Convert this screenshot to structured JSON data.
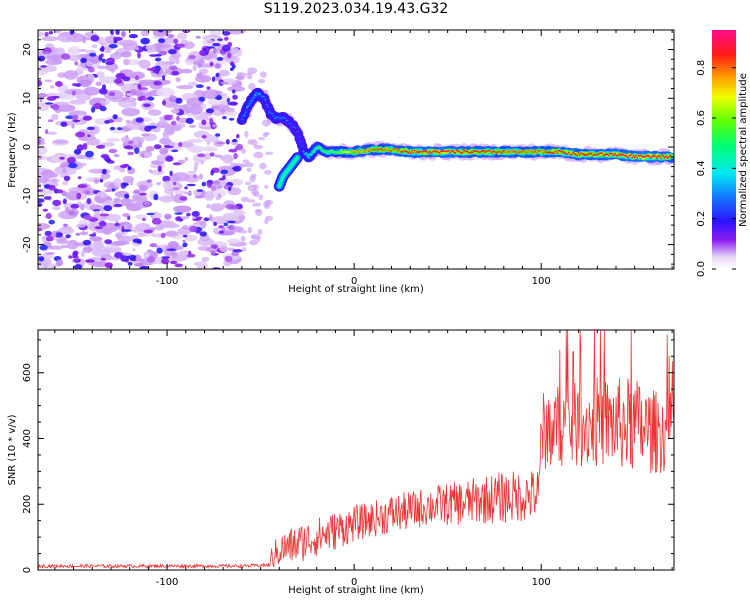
{
  "title": "S119.2023.034.19.43.G32",
  "chart_data": [
    {
      "type": "heatmap",
      "xlabel": "Height of straight line (km)",
      "ylabel": "Frequency (Hz)",
      "xlim": [
        -169,
        171
      ],
      "ylim": [
        -25,
        24
      ],
      "xticks": [
        -100,
        0,
        100
      ],
      "xtick_labels": [
        "-100",
        "0",
        "100"
      ],
      "yticks": [
        -20,
        -10,
        0,
        10,
        20
      ],
      "ytick_labels": [
        "-20",
        "-10",
        "0",
        "10",
        "20"
      ],
      "noise_region_x": [
        -169,
        -61
      ],
      "noise_amplitude_range": [
        0.0,
        0.3
      ],
      "signal_ridge": {
        "x": [
          -60,
          -56,
          -52,
          -48,
          -45,
          -42,
          -38,
          -34,
          -30,
          -27,
          -24,
          -20,
          -15,
          -10,
          -5,
          0,
          10,
          20,
          30,
          40,
          50,
          60,
          70,
          80,
          90,
          100,
          110,
          120,
          130,
          140,
          150,
          160,
          170
        ],
        "frequency": [
          5.5,
          9,
          11,
          10,
          7,
          6,
          6,
          5,
          3,
          -1,
          -2,
          0,
          -1,
          -1,
          -1,
          -1,
          -0.5,
          -0.5,
          -1,
          -1,
          -1,
          -1,
          -1,
          -1,
          -1,
          -1,
          -1,
          -1.5,
          -1.5,
          -1.5,
          -2,
          -2,
          -2
        ],
        "amplitude": [
          0.3,
          0.35,
          0.35,
          0.3,
          0.3,
          0.3,
          0.3,
          0.25,
          0.25,
          0.3,
          0.45,
          0.55,
          0.55,
          0.6,
          0.7,
          0.8,
          0.85,
          0.85,
          0.9,
          0.9,
          0.95,
          0.9,
          0.9,
          0.85,
          0.85,
          0.85,
          0.9,
          0.9,
          0.9,
          0.95,
          0.95,
          0.95,
          0.9
        ]
      },
      "side_branch": {
        "x": [
          -40,
          -38,
          -36,
          -34,
          -32,
          -30
        ],
        "frequency": [
          -8,
          -6,
          -5,
          -4,
          -3,
          -2
        ]
      },
      "colorbar": {
        "label": "Normalized spectral amplitude",
        "range": [
          0.0,
          0.95
        ],
        "ticks": [
          0.0,
          0.2,
          0.4,
          0.6,
          0.8
        ],
        "tick_labels": [
          "0.0",
          "0.2",
          "0.4",
          "0.6",
          "0.8"
        ],
        "colormap": "rainbow (white → violet → blue → cyan → green → yellow → orange → red → magenta)"
      }
    },
    {
      "type": "line",
      "xlabel": "Height of straight line (km)",
      "ylabel": "SNR (10 * v/v)",
      "xlim": [
        -169,
        171
      ],
      "ylim": [
        0,
        730
      ],
      "xticks": [
        -100,
        0,
        100
      ],
      "xtick_labels": [
        "-100",
        "0",
        "100"
      ],
      "yticks": [
        0,
        200,
        400,
        600
      ],
      "ytick_labels": [
        "0",
        "200",
        "400",
        "600"
      ],
      "color": "#ee3333",
      "envelope": {
        "x": [
          -169,
          -60,
          -45,
          -44,
          -40,
          -30,
          -20,
          -10,
          0,
          10,
          20,
          30,
          40,
          50,
          60,
          70,
          80,
          90,
          99,
          100,
          110,
          120,
          130,
          140,
          150,
          160,
          171
        ],
        "mean": [
          12,
          12,
          15,
          40,
          60,
          80,
          100,
          120,
          140,
          155,
          170,
          180,
          195,
          200,
          205,
          215,
          220,
          225,
          230,
          420,
          440,
          440,
          450,
          445,
          440,
          420,
          420
        ],
        "spread": [
          5,
          5,
          5,
          40,
          50,
          60,
          60,
          60,
          55,
          55,
          60,
          60,
          60,
          65,
          70,
          75,
          80,
          80,
          80,
          120,
          130,
          130,
          140,
          140,
          150,
          130,
          120
        ],
        "peak_max": 730
      }
    }
  ]
}
